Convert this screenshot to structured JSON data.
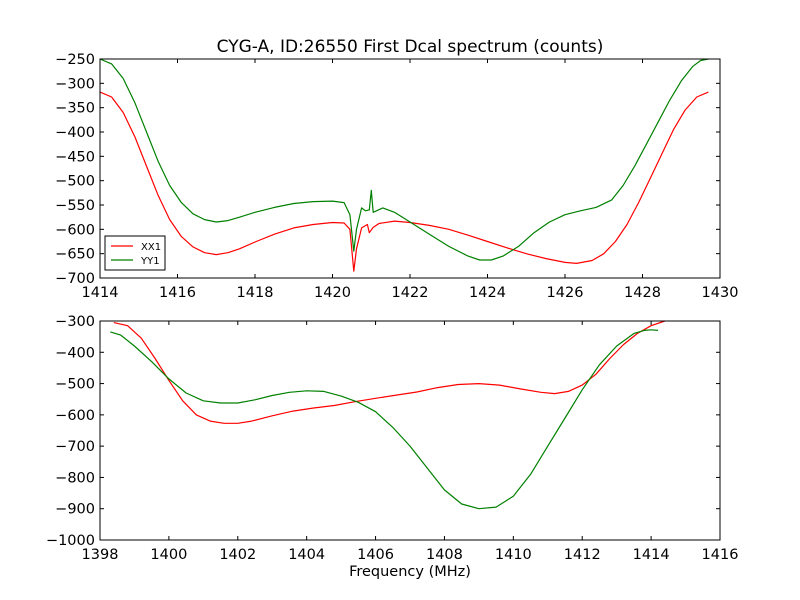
{
  "chart_data": [
    {
      "type": "line",
      "title": "CYG-A, ID:26550 First Dcal spectrum (counts)",
      "xlabel": "",
      "ylabel": "",
      "xlim": [
        1414,
        1430
      ],
      "ylim": [
        -700,
        -250
      ],
      "xticks": [
        1414,
        1416,
        1418,
        1420,
        1422,
        1424,
        1426,
        1428,
        1430
      ],
      "yticks": [
        -250,
        -300,
        -350,
        -400,
        -450,
        -500,
        -550,
        -600,
        -650,
        -700
      ],
      "grid": false,
      "legend_position": "lower-left",
      "series": [
        {
          "name": "XX1",
          "color": "#ff0000",
          "points": [
            [
              1414.0,
              -318
            ],
            [
              1414.3,
              -328
            ],
            [
              1414.6,
              -360
            ],
            [
              1414.9,
              -410
            ],
            [
              1415.2,
              -470
            ],
            [
              1415.5,
              -530
            ],
            [
              1415.8,
              -580
            ],
            [
              1416.1,
              -615
            ],
            [
              1416.4,
              -636
            ],
            [
              1416.7,
              -648
            ],
            [
              1417.0,
              -652
            ],
            [
              1417.3,
              -648
            ],
            [
              1417.6,
              -640
            ],
            [
              1418.0,
              -626
            ],
            [
              1418.5,
              -610
            ],
            [
              1419.0,
              -597
            ],
            [
              1419.5,
              -590
            ],
            [
              1420.0,
              -586
            ],
            [
              1420.3,
              -587
            ],
            [
              1420.45,
              -600
            ],
            [
              1420.55,
              -686
            ],
            [
              1420.62,
              -640
            ],
            [
              1420.75,
              -597
            ],
            [
              1420.9,
              -590
            ],
            [
              1420.95,
              -607
            ],
            [
              1421.05,
              -596
            ],
            [
              1421.2,
              -588
            ],
            [
              1421.6,
              -583
            ],
            [
              1422.0,
              -586
            ],
            [
              1422.5,
              -592
            ],
            [
              1423.0,
              -600
            ],
            [
              1423.5,
              -612
            ],
            [
              1424.0,
              -625
            ],
            [
              1424.5,
              -638
            ],
            [
              1425.0,
              -650
            ],
            [
              1425.5,
              -660
            ],
            [
              1426.0,
              -668
            ],
            [
              1426.3,
              -670
            ],
            [
              1426.7,
              -664
            ],
            [
              1427.0,
              -650
            ],
            [
              1427.3,
              -625
            ],
            [
              1427.6,
              -590
            ],
            [
              1427.9,
              -545
            ],
            [
              1428.2,
              -495
            ],
            [
              1428.5,
              -445
            ],
            [
              1428.8,
              -395
            ],
            [
              1429.1,
              -355
            ],
            [
              1429.4,
              -328
            ],
            [
              1429.7,
              -318
            ]
          ]
        },
        {
          "name": "YY1",
          "color": "#008000",
          "points": [
            [
              1414.0,
              -250
            ],
            [
              1414.3,
              -260
            ],
            [
              1414.6,
              -290
            ],
            [
              1414.9,
              -340
            ],
            [
              1415.2,
              -400
            ],
            [
              1415.5,
              -460
            ],
            [
              1415.8,
              -510
            ],
            [
              1416.1,
              -545
            ],
            [
              1416.4,
              -568
            ],
            [
              1416.7,
              -580
            ],
            [
              1417.0,
              -585
            ],
            [
              1417.3,
              -582
            ],
            [
              1417.6,
              -575
            ],
            [
              1418.0,
              -565
            ],
            [
              1418.5,
              -555
            ],
            [
              1419.0,
              -547
            ],
            [
              1419.5,
              -543
            ],
            [
              1420.0,
              -542
            ],
            [
              1420.3,
              -545
            ],
            [
              1420.45,
              -570
            ],
            [
              1420.55,
              -645
            ],
            [
              1420.62,
              -600
            ],
            [
              1420.75,
              -556
            ],
            [
              1420.85,
              -562
            ],
            [
              1420.95,
              -560
            ],
            [
              1421.0,
              -520
            ],
            [
              1421.05,
              -565
            ],
            [
              1421.3,
              -556
            ],
            [
              1421.6,
              -565
            ],
            [
              1422.0,
              -585
            ],
            [
              1422.5,
              -610
            ],
            [
              1423.0,
              -635
            ],
            [
              1423.5,
              -655
            ],
            [
              1423.8,
              -663
            ],
            [
              1424.1,
              -663
            ],
            [
              1424.4,
              -655
            ],
            [
              1424.8,
              -635
            ],
            [
              1425.2,
              -607
            ],
            [
              1425.6,
              -585
            ],
            [
              1426.0,
              -570
            ],
            [
              1426.4,
              -562
            ],
            [
              1426.8,
              -555
            ],
            [
              1427.2,
              -540
            ],
            [
              1427.5,
              -510
            ],
            [
              1427.8,
              -470
            ],
            [
              1428.1,
              -425
            ],
            [
              1428.4,
              -380
            ],
            [
              1428.7,
              -335
            ],
            [
              1429.0,
              -295
            ],
            [
              1429.3,
              -265
            ],
            [
              1429.5,
              -253
            ],
            [
              1429.7,
              -250
            ]
          ]
        }
      ]
    },
    {
      "type": "line",
      "title": "",
      "xlabel": "Frequency (MHz)",
      "ylabel": "",
      "xlim": [
        1398,
        1416
      ],
      "ylim": [
        -1000,
        -300
      ],
      "xticks": [
        1398,
        1400,
        1402,
        1404,
        1406,
        1408,
        1410,
        1412,
        1414,
        1416
      ],
      "yticks": [
        -300,
        -400,
        -500,
        -600,
        -700,
        -800,
        -900,
        -1000
      ],
      "grid": false,
      "series": [
        {
          "name": "XX1",
          "color": "#ff0000",
          "points": [
            [
              1398.4,
              -305
            ],
            [
              1398.8,
              -315
            ],
            [
              1399.2,
              -355
            ],
            [
              1399.6,
              -420
            ],
            [
              1400.0,
              -490
            ],
            [
              1400.4,
              -555
            ],
            [
              1400.8,
              -600
            ],
            [
              1401.2,
              -620
            ],
            [
              1401.6,
              -627
            ],
            [
              1402.0,
              -627
            ],
            [
              1402.4,
              -620
            ],
            [
              1403.0,
              -603
            ],
            [
              1403.6,
              -588
            ],
            [
              1404.2,
              -578
            ],
            [
              1404.8,
              -570
            ],
            [
              1405.4,
              -558
            ],
            [
              1406.0,
              -547
            ],
            [
              1406.6,
              -537
            ],
            [
              1407.2,
              -527
            ],
            [
              1407.8,
              -513
            ],
            [
              1408.4,
              -503
            ],
            [
              1409.0,
              -500
            ],
            [
              1409.6,
              -505
            ],
            [
              1410.2,
              -517
            ],
            [
              1410.8,
              -528
            ],
            [
              1411.2,
              -532
            ],
            [
              1411.6,
              -525
            ],
            [
              1412.0,
              -505
            ],
            [
              1412.4,
              -470
            ],
            [
              1412.8,
              -420
            ],
            [
              1413.2,
              -375
            ],
            [
              1413.6,
              -340
            ],
            [
              1414.0,
              -315
            ],
            [
              1414.4,
              -300
            ]
          ]
        },
        {
          "name": "YY1",
          "color": "#008000",
          "points": [
            [
              1398.3,
              -335
            ],
            [
              1398.6,
              -345
            ],
            [
              1399.0,
              -380
            ],
            [
              1399.5,
              -430
            ],
            [
              1400.0,
              -485
            ],
            [
              1400.5,
              -530
            ],
            [
              1401.0,
              -555
            ],
            [
              1401.5,
              -562
            ],
            [
              1402.0,
              -562
            ],
            [
              1402.5,
              -552
            ],
            [
              1403.0,
              -538
            ],
            [
              1403.5,
              -528
            ],
            [
              1404.0,
              -523
            ],
            [
              1404.5,
              -525
            ],
            [
              1405.0,
              -540
            ],
            [
              1405.5,
              -560
            ],
            [
              1406.0,
              -590
            ],
            [
              1406.5,
              -640
            ],
            [
              1407.0,
              -700
            ],
            [
              1407.5,
              -770
            ],
            [
              1408.0,
              -840
            ],
            [
              1408.5,
              -885
            ],
            [
              1409.0,
              -900
            ],
            [
              1409.5,
              -895
            ],
            [
              1410.0,
              -860
            ],
            [
              1410.5,
              -790
            ],
            [
              1411.0,
              -700
            ],
            [
              1411.5,
              -610
            ],
            [
              1412.0,
              -520
            ],
            [
              1412.5,
              -440
            ],
            [
              1413.0,
              -380
            ],
            [
              1413.5,
              -340
            ],
            [
              1413.8,
              -330
            ],
            [
              1414.0,
              -328
            ],
            [
              1414.2,
              -330
            ]
          ]
        }
      ]
    }
  ]
}
